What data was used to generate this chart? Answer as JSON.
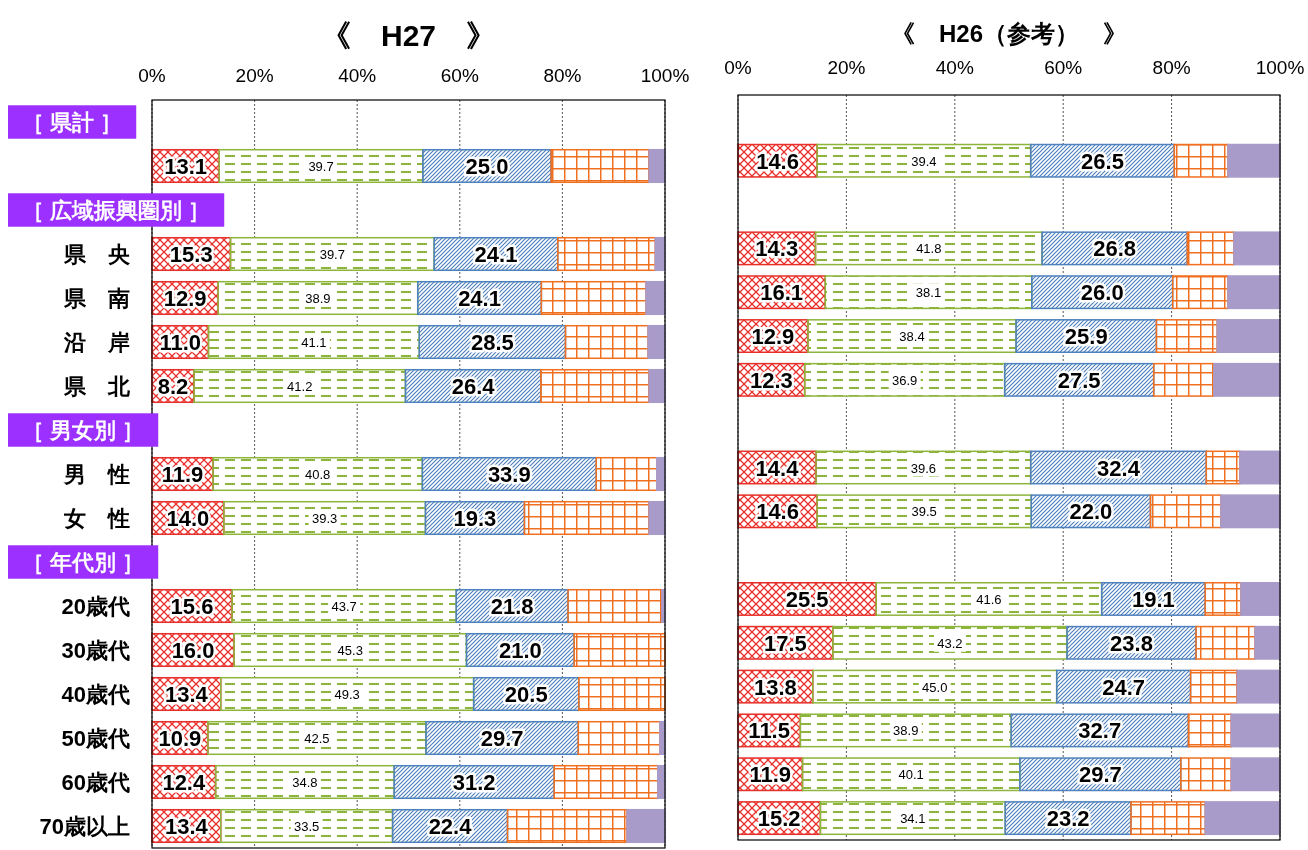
{
  "chart_data": [
    {
      "type": "bar",
      "title": "《　H27　》",
      "orientation": "horizontal",
      "stacked": true,
      "grid": "x",
      "annotations": [
        "［ 県計 ］",
        "［ 広域振興圏別 ］",
        "［ 男女別 ］",
        "［ 年代別 ］"
      ],
      "categories": [
        null,
        null,
        null,
        "県　央",
        "県　南",
        "沿　岸",
        "県　北",
        null,
        "男　性",
        "女　性",
        null,
        "20歳代",
        "30歳代",
        "40歳代",
        "50歳代",
        "60歳代",
        "70歳以上"
      ],
      "xlim": [
        0,
        100
      ],
      "xticks": [
        {
          "value": 0,
          "label": "0%"
        },
        {
          "value": 20,
          "label": "20%"
        },
        {
          "value": 40,
          "label": "40%"
        },
        {
          "value": 60,
          "label": "60%"
        },
        {
          "value": 80,
          "label": "80%"
        },
        {
          "value": 100,
          "label": "100%"
        }
      ],
      "series": [
        {
          "color": "#e8302a",
          "values": [
            null,
            13.1,
            null,
            15.3,
            12.9,
            11.0,
            8.2,
            null,
            11.9,
            14.0,
            null,
            15.6,
            16.0,
            13.4,
            10.9,
            12.4,
            13.4
          ],
          "value_labels": [
            null,
            "13.1",
            null,
            "15.3",
            "12.9",
            "11.0",
            "8.2",
            null,
            "11.9",
            "14.0",
            null,
            "15.6",
            "16.0",
            "13.4",
            "10.9",
            "12.4",
            "13.4"
          ]
        },
        {
          "color": "#8db53c",
          "values": [
            null,
            39.7,
            null,
            39.7,
            38.9,
            41.1,
            41.2,
            null,
            40.8,
            39.3,
            null,
            43.7,
            45.3,
            49.3,
            42.5,
            34.8,
            33.5
          ],
          "value_labels": [
            null,
            "39.7",
            null,
            "39.7",
            "38.9",
            "41.1",
            "41.2",
            null,
            "40.8",
            "39.3",
            null,
            "43.7",
            "45.3",
            "49.3",
            "42.5",
            "34.8",
            "33.5"
          ]
        },
        {
          "color": "#4f81bd",
          "values": [
            null,
            25.0,
            null,
            24.1,
            24.1,
            28.5,
            26.4,
            null,
            33.9,
            19.3,
            null,
            21.8,
            21.0,
            20.5,
            29.7,
            31.2,
            22.4
          ],
          "value_labels": [
            null,
            "25.0",
            null,
            "24.1",
            "24.1",
            "28.5",
            "26.4",
            null,
            "33.9",
            "19.3",
            null,
            "21.8",
            "21.0",
            "20.5",
            "29.7",
            "31.2",
            "22.4"
          ]
        },
        {
          "color": "#f07020",
          "values": [
            null,
            19.1,
            null,
            19.0,
            20.4,
            16.1,
            21.1,
            null,
            11.8,
            24.3,
            null,
            18.3,
            17.7,
            16.8,
            15.9,
            20.2,
            23.3
          ]
        },
        {
          "color": "#a99bc9",
          "values": [
            null,
            3.1,
            null,
            1.9,
            3.7,
            3.3,
            3.1,
            null,
            1.6,
            3.1,
            null,
            0.6,
            0,
            0,
            1.0,
            1.4,
            7.4
          ]
        }
      ]
    },
    {
      "type": "bar",
      "title": "《　H26（参考）　》",
      "orientation": "horizontal",
      "stacked": true,
      "grid": "x",
      "categories": [
        null,
        null,
        null,
        null,
        null,
        null,
        null,
        null,
        null,
        null,
        null,
        null,
        null,
        null,
        null,
        null,
        null
      ],
      "xlim": [
        0,
        100
      ],
      "xticks": [
        {
          "value": 0,
          "label": "0%"
        },
        {
          "value": 20,
          "label": "20%"
        },
        {
          "value": 40,
          "label": "40%"
        },
        {
          "value": 60,
          "label": "60%"
        },
        {
          "value": 80,
          "label": "80%"
        },
        {
          "value": 100,
          "label": "100%"
        }
      ],
      "series": [
        {
          "color": "#e8302a",
          "values": [
            null,
            14.6,
            null,
            14.3,
            16.1,
            12.9,
            12.3,
            null,
            14.4,
            14.6,
            null,
            25.5,
            17.5,
            13.8,
            11.5,
            11.9,
            15.2
          ],
          "value_labels": [
            null,
            "14.6",
            null,
            "14.3",
            "16.1",
            "12.9",
            "12.3",
            null,
            "14.4",
            "14.6",
            null,
            "25.5",
            "17.5",
            "13.8",
            "11.5",
            "11.9",
            "15.2"
          ]
        },
        {
          "color": "#8db53c",
          "values": [
            null,
            39.4,
            null,
            41.8,
            38.1,
            38.4,
            36.9,
            null,
            39.6,
            39.5,
            null,
            41.6,
            43.2,
            45.0,
            38.9,
            40.1,
            34.1
          ],
          "value_labels": [
            null,
            "39.4",
            null,
            "41.8",
            "38.1",
            "38.4",
            "36.9",
            null,
            "39.6",
            "39.5",
            null,
            "41.6",
            "43.2",
            "45.0",
            "38.9",
            "40.1",
            "34.1"
          ]
        },
        {
          "color": "#4f81bd",
          "values": [
            null,
            26.5,
            null,
            26.8,
            26.0,
            25.9,
            27.5,
            null,
            32.4,
            22.0,
            null,
            19.1,
            23.8,
            24.7,
            32.7,
            29.7,
            23.2
          ],
          "value_labels": [
            null,
            "26.5",
            null,
            "26.8",
            "26.0",
            "25.9",
            "27.5",
            null,
            "32.4",
            "22.0",
            null,
            "19.1",
            "23.8",
            "24.7",
            "32.7",
            "29.7",
            "23.2"
          ]
        },
        {
          "color": "#f07020",
          "values": [
            null,
            9.9,
            null,
            8.6,
            10.2,
            11.2,
            11.1,
            null,
            6.2,
            13.0,
            null,
            6.6,
            10.9,
            8.6,
            7.9,
            9.3,
            13.7
          ]
        },
        {
          "color": "#a99bc9",
          "values": [
            null,
            9.6,
            null,
            8.5,
            9.6,
            11.6,
            12.2,
            null,
            7.4,
            10.9,
            null,
            7.2,
            4.6,
            7.9,
            9.0,
            9.0,
            13.8
          ]
        }
      ]
    }
  ]
}
